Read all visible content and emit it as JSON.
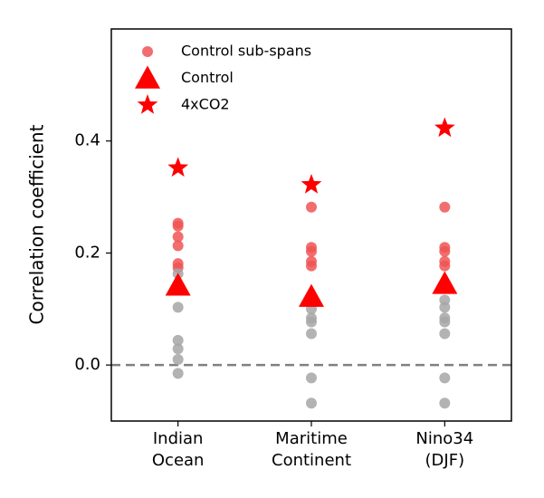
{
  "chart_data": {
    "type": "categorical_scatter",
    "y_label": "Correlation coefficient",
    "categories": [
      [
        "Indian",
        "Ocean"
      ],
      [
        "Maritime",
        "Continent"
      ],
      [
        "Nino34",
        "(DJF)"
      ]
    ],
    "xlim": [
      -0.5,
      2.5
    ],
    "ylim": [
      -0.1,
      0.6
    ],
    "yticks": [
      {
        "value": 0,
        "label": "0.0"
      },
      0.2,
      0.4
    ],
    "reference_line": 0,
    "legend": "upper left",
    "series": [
      {
        "name": "Control sub-spans",
        "marker": "circle",
        "values": [
          [
            0.253,
            0.248,
            0.229,
            0.213,
            0.181,
            0.174,
            0.163,
            0.103,
            0.044,
            0.029,
            0.01,
            -0.015
          ],
          [
            0.282,
            0.21,
            0.203,
            0.185,
            0.177,
            0.1,
            0.084,
            0.077,
            0.056,
            -0.023,
            -0.068
          ],
          [
            0.282,
            0.21,
            0.203,
            0.185,
            0.177,
            0.116,
            0.103,
            0.084,
            0.077,
            0.056,
            -0.023,
            -0.068
          ]
        ],
        "colors": [
          [
            "#f05555",
            "#f05555",
            "#f05555",
            "#f05555",
            "#f05555",
            "#f05555",
            "#a6a6a6",
            "#a6a6a6",
            "#a6a6a6",
            "#a6a6a6",
            "#a6a6a6",
            "#a6a6a6"
          ],
          [
            "#f05555",
            "#f05555",
            "#f05555",
            "#f05555",
            "#f05555",
            "#a6a6a6",
            "#a6a6a6",
            "#a6a6a6",
            "#a6a6a6",
            "#a6a6a6",
            "#a6a6a6"
          ],
          [
            "#f05555",
            "#f05555",
            "#f05555",
            "#f05555",
            "#f05555",
            "#a6a6a6",
            "#a6a6a6",
            "#a6a6a6",
            "#a6a6a6",
            "#a6a6a6",
            "#a6a6a6",
            "#a6a6a6"
          ]
        ],
        "color": "#f05555"
      },
      {
        "name": "Control",
        "marker": "triangle",
        "color": "#ff0000",
        "values": [
          0.142,
          0.122,
          0.145
        ]
      },
      {
        "name": "4xCO2",
        "marker": "star",
        "color": "#ff0000",
        "values": [
          0.352,
          0.322,
          0.423
        ]
      }
    ]
  }
}
